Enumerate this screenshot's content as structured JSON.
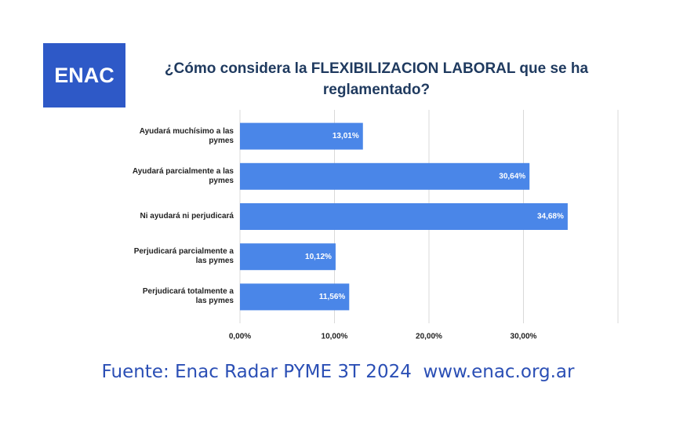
{
  "logo": "ENAC",
  "chart_data": {
    "type": "bar",
    "orientation": "horizontal",
    "title": "¿Cómo considera la FLEXIBILIZACION LABORAL que se ha reglamentado?",
    "categories": [
      "Ayudará muchísimo a las pymes",
      "Ayudará parcialmente a las pymes",
      "Ni ayudará ni perjudicará",
      "Perjudicará parcialmente a las pymes",
      "Perjudicará totalmente a las pymes"
    ],
    "values": [
      13.01,
      30.64,
      34.68,
      10.12,
      11.56
    ],
    "value_labels": [
      "13,01%",
      "30,64%",
      "34,68%",
      "10,12%",
      "11,56%"
    ],
    "color": "#4a86e8",
    "xlim": [
      0,
      40
    ],
    "xticks": [
      {
        "value": 0,
        "label": "0,00%"
      },
      {
        "value": 10,
        "label": "10,00%"
      },
      {
        "value": 20,
        "label": "20,00%"
      },
      {
        "value": 30,
        "label": "30,00%"
      }
    ],
    "grid": true
  },
  "source": "Fuente: Enac Radar PYME 3T 2024  www.enac.org.ar"
}
